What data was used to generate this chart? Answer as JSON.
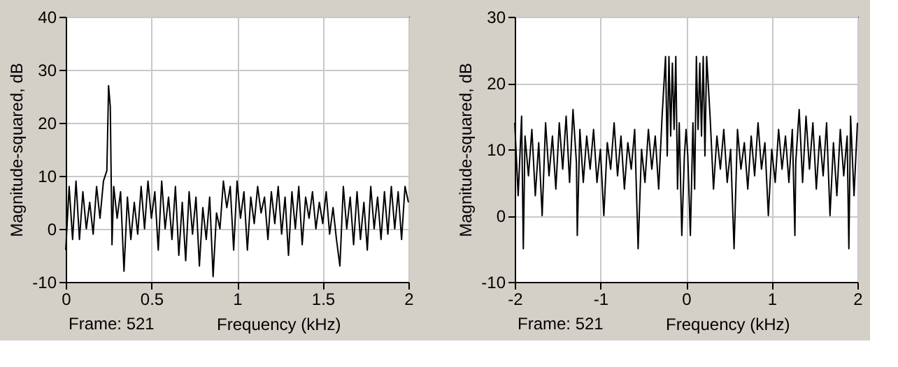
{
  "chart_data": [
    {
      "type": "line",
      "xlabel": "Frequency (kHz)",
      "ylabel": "Magnitude-squared, dB",
      "annotations": [
        "Frame: 521"
      ],
      "xlim": [
        0,
        2
      ],
      "ylim": [
        -10,
        40
      ],
      "xticks": [
        0,
        0.5,
        1,
        1.5,
        2
      ],
      "yticks": [
        -10,
        0,
        10,
        20,
        30,
        40
      ],
      "grid": true,
      "color": "#000000",
      "x": [
        0,
        0.02,
        0.04,
        0.06,
        0.08,
        0.1,
        0.12,
        0.14,
        0.16,
        0.18,
        0.2,
        0.22,
        0.24,
        0.25,
        0.26,
        0.27,
        0.28,
        0.3,
        0.32,
        0.34,
        0.36,
        0.38,
        0.4,
        0.42,
        0.44,
        0.46,
        0.48,
        0.5,
        0.52,
        0.54,
        0.56,
        0.58,
        0.6,
        0.62,
        0.64,
        0.66,
        0.68,
        0.7,
        0.72,
        0.74,
        0.76,
        0.78,
        0.8,
        0.82,
        0.84,
        0.86,
        0.88,
        0.9,
        0.92,
        0.94,
        0.96,
        0.98,
        1,
        1.02,
        1.04,
        1.06,
        1.08,
        1.1,
        1.12,
        1.14,
        1.16,
        1.18,
        1.2,
        1.22,
        1.24,
        1.26,
        1.28,
        1.3,
        1.32,
        1.34,
        1.36,
        1.38,
        1.4,
        1.42,
        1.44,
        1.46,
        1.48,
        1.5,
        1.52,
        1.54,
        1.56,
        1.58,
        1.6,
        1.62,
        1.64,
        1.66,
        1.68,
        1.7,
        1.72,
        1.74,
        1.76,
        1.78,
        1.8,
        1.82,
        1.84,
        1.86,
        1.88,
        1.9,
        1.92,
        1.94,
        1.96,
        1.98,
        2
      ],
      "values": [
        -4,
        8,
        -2,
        9,
        -2,
        7,
        0,
        5,
        -1,
        8,
        2,
        9,
        11,
        27,
        23,
        -3,
        8,
        2,
        7,
        -8,
        6,
        -2,
        5,
        -1,
        8,
        0,
        9,
        2,
        7,
        -4,
        9,
        0,
        6,
        -2,
        8,
        -5,
        5,
        -6,
        7,
        -1,
        6,
        -7,
        4,
        -2,
        6,
        -9,
        3,
        0,
        9,
        4,
        8,
        -4,
        9,
        2,
        7,
        -4,
        6,
        1,
        8,
        3,
        6,
        -2,
        7,
        1,
        8,
        -1,
        6,
        -5,
        7,
        0,
        8,
        -3,
        6,
        2,
        7,
        0,
        5,
        1,
        7,
        -1,
        4,
        -2,
        -7,
        8,
        0,
        6,
        -3,
        7,
        -2,
        5,
        -4,
        8,
        0,
        6,
        -2,
        7,
        -1,
        8,
        0,
        7,
        -2,
        8,
        5
      ]
    },
    {
      "type": "line",
      "xlabel": "Frequency (kHz)",
      "ylabel": "Magnitude-squared, dB",
      "annotations": [
        "Frame: 521"
      ],
      "xlim": [
        -2,
        2
      ],
      "ylim": [
        -10,
        30
      ],
      "xticks": [
        -2,
        -1,
        0,
        1,
        2
      ],
      "yticks": [
        -10,
        0,
        10,
        20,
        30
      ],
      "grid": true,
      "color": "#000000",
      "x": [
        -2,
        -1.96,
        -1.92,
        -1.9,
        -1.88,
        -1.84,
        -1.8,
        -1.76,
        -1.72,
        -1.68,
        -1.64,
        -1.6,
        -1.56,
        -1.52,
        -1.48,
        -1.44,
        -1.4,
        -1.36,
        -1.32,
        -1.28,
        -1.27,
        -1.24,
        -1.2,
        -1.16,
        -1.12,
        -1.08,
        -1.04,
        -1,
        -0.96,
        -0.92,
        -0.88,
        -0.84,
        -0.8,
        -0.76,
        -0.72,
        -0.68,
        -0.64,
        -0.6,
        -0.56,
        -0.52,
        -0.48,
        -0.44,
        -0.4,
        -0.36,
        -0.32,
        -0.28,
        -0.24,
        -0.22,
        -0.2,
        -0.18,
        -0.16,
        -0.14,
        -0.12,
        -0.1,
        -0.08,
        -0.05,
        -0.02,
        0,
        0.02,
        0.05,
        0.08,
        0.1,
        0.12,
        0.14,
        0.16,
        0.18,
        0.2,
        0.22,
        0.24,
        0.28,
        0.32,
        0.36,
        0.4,
        0.44,
        0.48,
        0.52,
        0.56,
        0.6,
        0.64,
        0.68,
        0.72,
        0.76,
        0.8,
        0.84,
        0.88,
        0.92,
        0.96,
        1,
        1.04,
        1.08,
        1.12,
        1.16,
        1.2,
        1.24,
        1.27,
        1.28,
        1.32,
        1.36,
        1.4,
        1.44,
        1.48,
        1.52,
        1.56,
        1.6,
        1.64,
        1.68,
        1.72,
        1.76,
        1.8,
        1.84,
        1.88,
        1.9,
        1.92,
        1.96,
        2
      ],
      "values": [
        14,
        3,
        15,
        -5,
        12,
        6,
        13,
        3,
        11,
        0,
        14,
        6,
        12,
        4,
        14,
        7,
        15,
        5,
        16,
        8,
        -3,
        13,
        5,
        12,
        7,
        13,
        5,
        10,
        0,
        11,
        7,
        14,
        6,
        12,
        4,
        11,
        7,
        13,
        -5,
        10,
        5,
        13,
        7,
        12,
        4,
        15,
        24,
        9,
        24,
        12,
        23,
        13,
        24,
        4,
        14,
        -3,
        9,
        13,
        9,
        -3,
        14,
        4,
        24,
        13,
        23,
        12,
        24,
        9,
        24,
        15,
        4,
        12,
        7,
        13,
        5,
        10,
        -5,
        13,
        7,
        11,
        4,
        12,
        6,
        14,
        7,
        11,
        0,
        10,
        5,
        13,
        7,
        12,
        5,
        13,
        -3,
        8,
        16,
        5,
        15,
        7,
        14,
        4,
        12,
        6,
        14,
        0,
        11,
        3,
        13,
        6,
        12,
        -5,
        15,
        3,
        14
      ]
    }
  ]
}
